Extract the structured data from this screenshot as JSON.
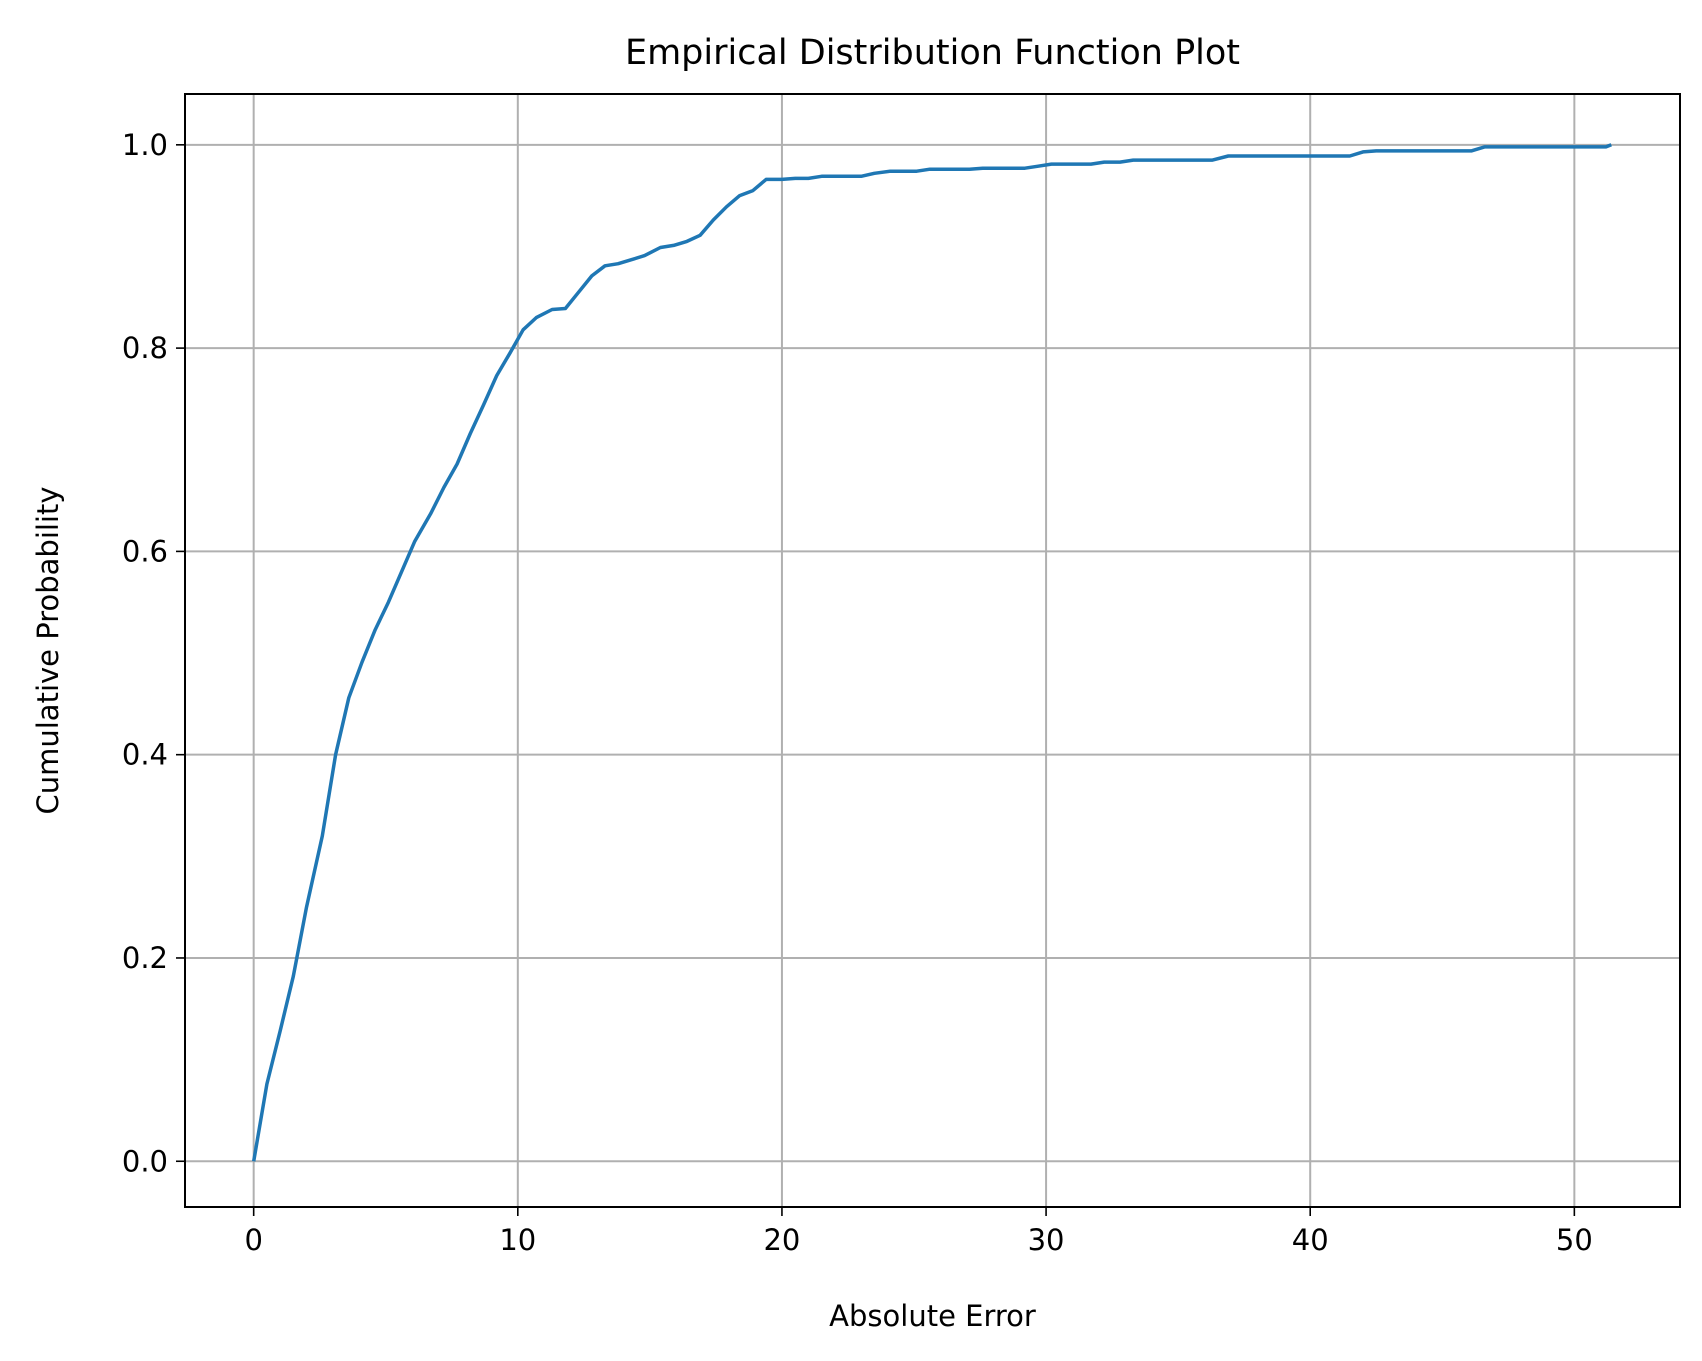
{
  "chart_data": {
    "type": "line",
    "title": "Empirical Distribution Function Plot",
    "xlabel": "Absolute Error",
    "ylabel": "Cumulative Probability",
    "xlim": [
      -2.6,
      54.0
    ],
    "ylim": [
      -0.045,
      1.05
    ],
    "x_ticks": [
      0,
      10,
      20,
      30,
      40,
      50
    ],
    "y_ticks": [
      0.0,
      0.2,
      0.4,
      0.6,
      0.8,
      1.0
    ],
    "x_tick_labels": [
      "0",
      "10",
      "20",
      "30",
      "40",
      "50"
    ],
    "y_tick_labels": [
      "0.0",
      "0.2",
      "0.4",
      "0.6",
      "0.8",
      "1.0"
    ],
    "grid": true,
    "line_color": "#1f77b4",
    "grid_color": "#b0b0b0",
    "series": [
      {
        "x": [
          0.0,
          0.5,
          1.0,
          1.5,
          2.0,
          2.6,
          3.1,
          3.6,
          4.1,
          4.6,
          5.1,
          5.6,
          6.1,
          6.7,
          7.2,
          7.7,
          8.2,
          8.7,
          9.2,
          9.7,
          10.2,
          10.7,
          11.3,
          11.8,
          12.3,
          12.8,
          13.3,
          13.8,
          14.3,
          14.8,
          15.4,
          15.9,
          16.4,
          16.9,
          17.4,
          17.9,
          18.4,
          18.9,
          19.4,
          20.0,
          20.5,
          21.0,
          21.5,
          22.0,
          23.0,
          23.5,
          24.1,
          24.6,
          25.1,
          25.6,
          26.1,
          27.1,
          27.6,
          28.2,
          29.2,
          29.7,
          30.2,
          30.7,
          31.7,
          32.2,
          32.8,
          33.3,
          36.3,
          36.9,
          41.5,
          42.0,
          42.5,
          46.1,
          46.6,
          47.1,
          51.2,
          51.4
        ],
        "values": [
          0.0,
          0.076,
          0.128,
          0.182,
          0.25,
          0.32,
          0.4,
          0.456,
          0.491,
          0.523,
          0.55,
          0.58,
          0.61,
          0.637,
          0.663,
          0.686,
          0.716,
          0.744,
          0.773,
          0.795,
          0.818,
          0.83,
          0.838,
          0.839,
          0.855,
          0.871,
          0.881,
          0.883,
          0.887,
          0.891,
          0.899,
          0.901,
          0.905,
          0.911,
          0.926,
          0.939,
          0.95,
          0.955,
          0.966,
          0.966,
          0.967,
          0.967,
          0.969,
          0.969,
          0.969,
          0.972,
          0.974,
          0.974,
          0.974,
          0.976,
          0.976,
          0.976,
          0.977,
          0.977,
          0.977,
          0.979,
          0.981,
          0.981,
          0.981,
          0.983,
          0.983,
          0.985,
          0.985,
          0.989,
          0.989,
          0.993,
          0.994,
          0.994,
          0.998,
          0.998,
          0.998,
          1.0
        ]
      }
    ]
  }
}
